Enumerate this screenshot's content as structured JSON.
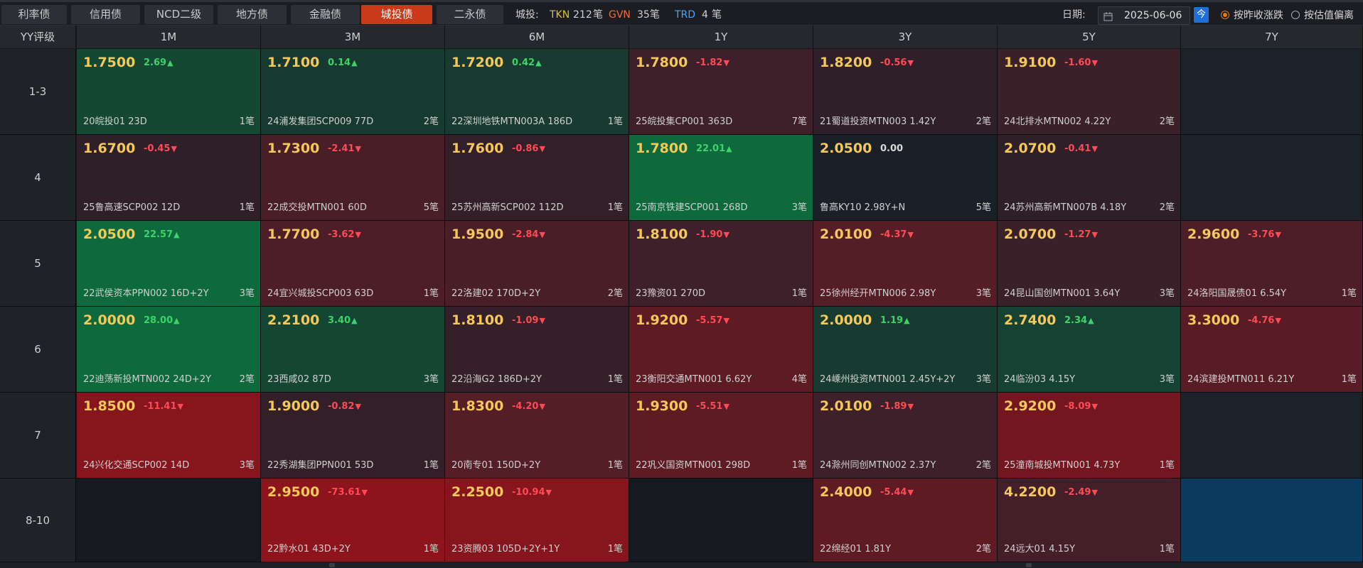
{
  "tabs": [
    "利率债",
    "信用债",
    "NCD二级",
    "地方债",
    "金融债",
    "城投债",
    "二永债"
  ],
  "active_tab": "城投债",
  "stats": {
    "label": "城投:",
    "tkn_label": "TKN",
    "tkn_value": "212",
    "tkn_unit": "笔",
    "gvn_label": "GVN",
    "gvn_value": "35",
    "gvn_unit": "笔",
    "trd_label": "TRD",
    "trd_value": "4",
    "trd_unit": "笔"
  },
  "date": {
    "label": "日期:",
    "value": "2025-06-06",
    "today_button": "今"
  },
  "radios": {
    "option1": "按昨收涨跌",
    "option2": "按估值偏离",
    "selected": "option1"
  },
  "grid": {
    "corner": "YY评级",
    "columns": [
      "1M",
      "3M",
      "6M",
      "1Y",
      "3Y",
      "5Y",
      "7Y"
    ],
    "rows": [
      {
        "label": "1-3",
        "cells": [
          {
            "yield": "1.7500",
            "change": "2.69",
            "dir": "up",
            "bond": "20皖投01 23D",
            "count": "1笔",
            "bg": "#144832"
          },
          {
            "yield": "1.7100",
            "change": "0.14",
            "dir": "up",
            "bond": "24浦发集团SCP009 77D",
            "count": "2笔",
            "bg": "#173a30"
          },
          {
            "yield": "1.7200",
            "change": "0.42",
            "dir": "up",
            "bond": "22深圳地铁MTN003A 186D",
            "count": "1笔",
            "bg": "#183a30"
          },
          {
            "yield": "1.7800",
            "change": "-1.82",
            "dir": "down",
            "bond": "25皖投集CP001 363D",
            "count": "7笔",
            "bg": "#3d2029"
          },
          {
            "yield": "1.8200",
            "change": "-0.56",
            "dir": "down",
            "bond": "21蜀道投资MTN003 1.42Y",
            "count": "2笔",
            "bg": "#2f1f28"
          },
          {
            "yield": "1.9100",
            "change": "-1.60",
            "dir": "down",
            "bond": "24北排水MTN002 4.22Y",
            "count": "2笔",
            "bg": "#3a2029"
          },
          null
        ]
      },
      {
        "label": "4",
        "cells": [
          {
            "yield": "1.6700",
            "change": "-0.45",
            "dir": "down",
            "bond": "25鲁高速SCP002 12D",
            "count": "1笔",
            "bg": "#2f1f28"
          },
          {
            "yield": "1.7300",
            "change": "-2.41",
            "dir": "down",
            "bond": "22成交投MTN001 60D",
            "count": "5笔",
            "bg": "#4a1e27"
          },
          {
            "yield": "1.7600",
            "change": "-0.86",
            "dir": "down",
            "bond": "25苏州高新SCP002 112D",
            "count": "1笔",
            "bg": "#331f28"
          },
          {
            "yield": "1.7800",
            "change": "22.01",
            "dir": "up",
            "bond": "25南京铁建SCP001 268D",
            "count": "3笔",
            "bg": "#0e6a3c"
          },
          {
            "yield": "2.0500",
            "change": "0.00",
            "dir": "flat",
            "bond": "鲁高KY10 2.98Y+N",
            "count": "5笔",
            "bg": "#1b2028"
          },
          {
            "yield": "2.0700",
            "change": "-0.41",
            "dir": "down",
            "bond": "24苏州高新MTN007B 4.18Y",
            "count": "2笔",
            "bg": "#2f1f28"
          },
          null
        ]
      },
      {
        "label": "5",
        "cells": [
          {
            "yield": "2.0500",
            "change": "22.57",
            "dir": "up",
            "bond": "22武侯资本PPN002 16D+2Y",
            "count": "3笔",
            "bg": "#0e6a3c"
          },
          {
            "yield": "1.7700",
            "change": "-3.62",
            "dir": "down",
            "bond": "24宜兴城投SCP003 63D",
            "count": "1笔",
            "bg": "#4d1e27"
          },
          {
            "yield": "1.9500",
            "change": "-2.84",
            "dir": "down",
            "bond": "22洛建02 170D+2Y",
            "count": "2笔",
            "bg": "#4a1e27"
          },
          {
            "yield": "1.8100",
            "change": "-1.90",
            "dir": "down",
            "bond": "23豫资01 270D",
            "count": "1笔",
            "bg": "#3d2029"
          },
          {
            "yield": "2.0100",
            "change": "-4.37",
            "dir": "down",
            "bond": "25徐州经开MTN006 2.98Y",
            "count": "3笔",
            "bg": "#551d26"
          },
          {
            "yield": "2.0700",
            "change": "-1.27",
            "dir": "down",
            "bond": "24昆山国创MTN001 3.64Y",
            "count": "3笔",
            "bg": "#3a2029"
          },
          {
            "yield": "2.9600",
            "change": "-3.76",
            "dir": "down",
            "bond": "24洛阳国晟债01 6.54Y",
            "count": "1笔",
            "bg": "#4d1e27"
          }
        ]
      },
      {
        "label": "6",
        "cells": [
          {
            "yield": "2.0000",
            "change": "28.00",
            "dir": "up",
            "bond": "22迪荡新投MTN002 24D+2Y",
            "count": "2笔",
            "bg": "#0e6a3c"
          },
          {
            "yield": "2.2100",
            "change": "3.40",
            "dir": "up",
            "bond": "23西咸02 87D",
            "count": "3笔",
            "bg": "#154633"
          },
          {
            "yield": "1.8100",
            "change": "-1.09",
            "dir": "down",
            "bond": "22沿海G2 186D+2Y",
            "count": "1笔",
            "bg": "#351f28"
          },
          {
            "yield": "1.9200",
            "change": "-5.57",
            "dir": "down",
            "bond": "23衡阳交通MTN001 6.62Y",
            "count": "4笔",
            "bg": "#5e1b24"
          },
          {
            "yield": "2.0000",
            "change": "1.19",
            "dir": "up",
            "bond": "24嵊州投资MTN001 2.45Y+2Y",
            "count": "3笔",
            "bg": "#173b30"
          },
          {
            "yield": "2.7400",
            "change": "2.34",
            "dir": "up",
            "bond": "24临汾03 4.15Y",
            "count": "3笔",
            "bg": "#154233"
          },
          {
            "yield": "3.3000",
            "change": "-4.76",
            "dir": "down",
            "bond": "24滨建投MTN011 6.21Y",
            "count": "1笔",
            "bg": "#581c25"
          }
        ]
      },
      {
        "label": "7",
        "cells": [
          {
            "yield": "1.8500",
            "change": "-11.41",
            "dir": "down",
            "bond": "24兴化交通SCP002 14D",
            "count": "3笔",
            "bg": "#86151d"
          },
          {
            "yield": "1.9000",
            "change": "-0.82",
            "dir": "down",
            "bond": "22秀湖集团PPN001 53D",
            "count": "1笔",
            "bg": "#331f28"
          },
          {
            "yield": "1.8300",
            "change": "-4.20",
            "dir": "down",
            "bond": "20南专01 150D+2Y",
            "count": "1笔",
            "bg": "#551d26"
          },
          {
            "yield": "1.9300",
            "change": "-5.51",
            "dir": "down",
            "bond": "22巩义国资MTN001 298D",
            "count": "1笔",
            "bg": "#5e1b24"
          },
          {
            "yield": "2.0100",
            "change": "-1.89",
            "dir": "down",
            "bond": "24滁州同创MTN002 2.37Y",
            "count": "2笔",
            "bg": "#3d2029"
          },
          {
            "yield": "2.9200",
            "change": "-8.09",
            "dir": "down",
            "bond": "25潼南城投MTN001 4.73Y",
            "count": "1笔",
            "bg": "#741620"
          },
          null
        ]
      },
      {
        "label": "8-10",
        "cells": [
          null,
          {
            "yield": "2.9500",
            "change": "-73.61",
            "dir": "down",
            "bond": "22黔水01 43D+2Y",
            "count": "1笔",
            "bg": "#8d141c"
          },
          {
            "yield": "2.2500",
            "change": "-10.94",
            "dir": "down",
            "bond": "23资腾03 105D+2Y+1Y",
            "count": "1笔",
            "bg": "#86151d"
          },
          null,
          {
            "yield": "2.4000",
            "change": "-5.44",
            "dir": "down",
            "bond": "22绵经01 1.81Y",
            "count": "2笔",
            "bg": "#5e1b24"
          },
          {
            "yield": "4.2200",
            "change": "-2.49",
            "dir": "down",
            "bond": "24远大01 4.15Y",
            "count": "1笔",
            "bg": "#441e28"
          },
          null
        ]
      }
    ],
    "empty_colors": {
      "r0c6": "#1c2229",
      "r1c6": "#1c2229",
      "r4c6": "#1c2229",
      "r5c0": "#161a20",
      "r5c3": "#161a20",
      "r5c6": "#0b3c60"
    }
  }
}
